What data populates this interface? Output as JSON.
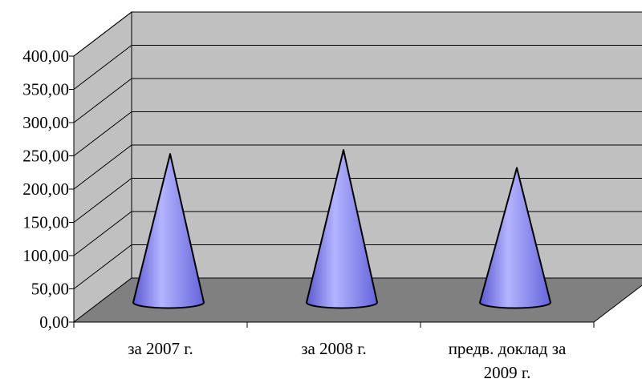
{
  "chart_data": {
    "type": "bar",
    "bar_shape": "cone",
    "three_d": true,
    "categories": [
      "за 2007 г.",
      "за 2008 г.",
      "предв. доклад за 2009 г."
    ],
    "category_lines": [
      [
        "за 2007 г."
      ],
      [
        "за 2008 г."
      ],
      [
        "предв. доклад за",
        "2009 г."
      ]
    ],
    "values": [
      227,
      233,
      206
    ],
    "ylim": [
      0,
      400
    ],
    "yticks": [
      "0,00",
      "50,00",
      "100,00",
      "150,00",
      "200,00",
      "250,00",
      "300,00",
      "350,00",
      "400,00"
    ],
    "grid": true,
    "legend": false,
    "colors": {
      "wall": "#c0c0c0",
      "floor": "#808080",
      "cone": "#8c8cf0",
      "cone_light": "#b4b4ff",
      "cone_dark": "#5a5ad2"
    }
  }
}
